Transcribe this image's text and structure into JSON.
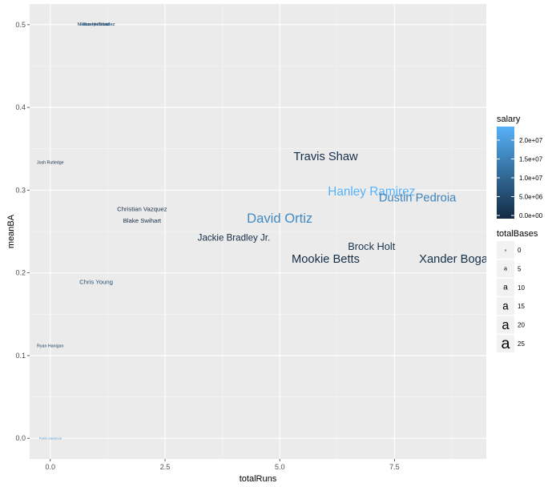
{
  "chart_data": {
    "type": "scatter",
    "geom": "text",
    "xlabel": "totalRuns",
    "ylabel": "meanBA",
    "xlim": [
      -0.45,
      9.5
    ],
    "ylim": [
      -0.025,
      0.525
    ],
    "x_ticks": [
      0.0,
      2.5,
      5.0,
      7.5
    ],
    "x_tick_labels": [
      "0.0",
      "2.5",
      "5.0",
      "7.5"
    ],
    "y_ticks": [
      0.0,
      0.1,
      0.2,
      0.3,
      0.4,
      0.5
    ],
    "y_tick_labels": [
      "0.0",
      "0.1",
      "0.2",
      "0.3",
      "0.4",
      "0.5"
    ],
    "grid": true,
    "background": "#ebebeb",
    "points": [
      {
        "label": "Marco Hernandez",
        "x": 1,
        "y": 0.5,
        "totalBases": 3,
        "salary": 510000
      },
      {
        "label": "Roenis Elias",
        "x": 1,
        "y": 0.5,
        "totalBases": 3,
        "salary": 2500000
      },
      {
        "label": "Travis Shaw",
        "x": 6,
        "y": 0.34,
        "totalBases": 17,
        "salary": 520000
      },
      {
        "label": "Josh Rutledge",
        "x": 0,
        "y": 0.333,
        "totalBases": 2,
        "salary": 550000
      },
      {
        "label": "Hanley Ramirez",
        "x": 7,
        "y": 0.298,
        "totalBases": 18,
        "salary": 22750000
      },
      {
        "label": "Dustin Pedroia",
        "x": 8,
        "y": 0.29,
        "totalBases": 17,
        "salary": 15000000
      },
      {
        "label": "Christian Vazquez",
        "x": 2,
        "y": 0.277,
        "totalBases": 6,
        "salary": 540000
      },
      {
        "label": "David Ortiz",
        "x": 5,
        "y": 0.266,
        "totalBases": 20,
        "salary": 16000000
      },
      {
        "label": "Blake Swihart",
        "x": 2,
        "y": 0.263,
        "totalBases": 6,
        "salary": 530000
      },
      {
        "label": "Jackie Bradley Jr.",
        "x": 4,
        "y": 0.242,
        "totalBases": 12,
        "salary": 540000
      },
      {
        "label": "Brock Holt",
        "x": 7,
        "y": 0.232,
        "totalBases": 14,
        "salary": 1950000
      },
      {
        "label": "Mookie Betts",
        "x": 6,
        "y": 0.216,
        "totalBases": 17,
        "salary": 566000
      },
      {
        "label": "Xander Bogaerts",
        "x": 9,
        "y": 0.216,
        "totalBases": 17,
        "salary": 635000
      },
      {
        "label": "Chris Young",
        "x": 1,
        "y": 0.189,
        "totalBases": 6,
        "salary": 6500000
      },
      {
        "label": "Rusney Castillo",
        "x": 1,
        "y": 0.5,
        "totalBases": 3,
        "salary": 11271000
      },
      {
        "label": "Ryan Hanigan",
        "x": 0,
        "y": 0.111,
        "totalBases": 2,
        "salary": 3700000
      },
      {
        "label": "Pablo Sandoval",
        "x": 0,
        "y": 0.0,
        "totalBases": 0,
        "salary": 17600000
      }
    ],
    "legend": {
      "placement": "right",
      "color": {
        "title": "salary",
        "breaks": [
          0,
          5000000,
          10000000,
          15000000,
          20000000
        ],
        "labels": [
          "0.0e+00",
          "5.0e+06",
          "1.0e+07",
          "1.5e+07",
          "2.0e+07"
        ],
        "range": [
          0,
          22750000
        ],
        "low_color": "#132b43",
        "high_color": "#56b1f7"
      },
      "size": {
        "title": "totalBases",
        "breaks": [
          0,
          5,
          10,
          15,
          20,
          25
        ],
        "labels": [
          "0",
          "5",
          "10",
          "15",
          "20",
          "25"
        ],
        "key_glyph": "a"
      }
    }
  }
}
